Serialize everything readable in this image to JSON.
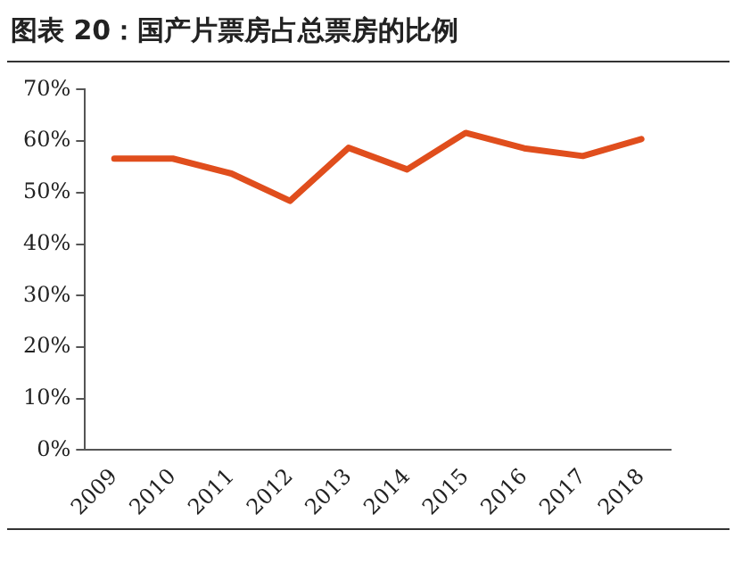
{
  "chart_data": {
    "type": "line",
    "title": "图表 20：国产片票房占总票房的比例",
    "categories": [
      "2009",
      "2010",
      "2011",
      "2012",
      "2013",
      "2014",
      "2015",
      "2016",
      "2017",
      "2018"
    ],
    "series": [
      {
        "color": "#e04e1d",
        "values": [
          56.6,
          56.6,
          53.7,
          48.4,
          58.7,
          54.5,
          61.6,
          58.6,
          57.1,
          60.4
        ]
      }
    ],
    "ylim": [
      0,
      70
    ],
    "yticks": [
      {
        "value": 0,
        "label": "0%"
      },
      {
        "value": 10,
        "label": "10%"
      },
      {
        "value": 20,
        "label": "20%"
      },
      {
        "value": 30,
        "label": "30%"
      },
      {
        "value": 40,
        "label": "40%"
      },
      {
        "value": 50,
        "label": "50%"
      },
      {
        "value": 60,
        "label": "60%"
      },
      {
        "value": 70,
        "label": "70%"
      }
    ],
    "grid": false,
    "legend": false,
    "marker": "none",
    "line_style": "solid"
  }
}
